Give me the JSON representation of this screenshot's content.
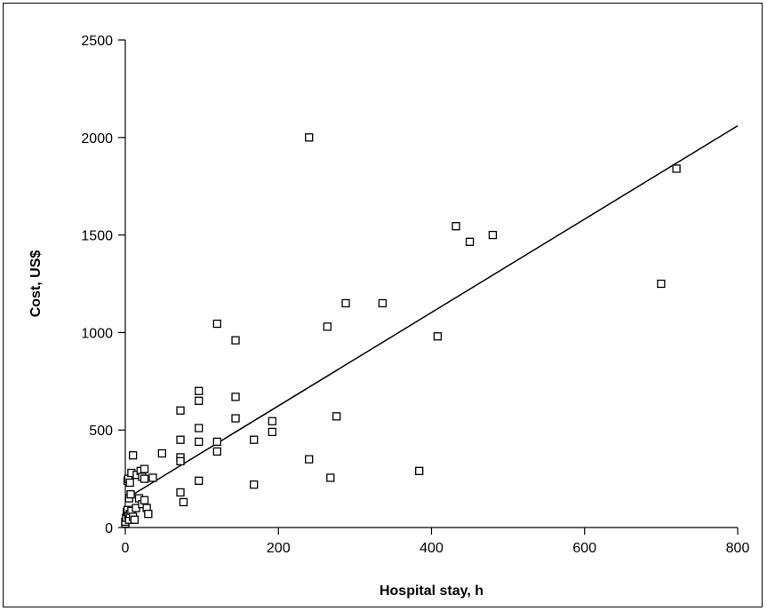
{
  "chart_data": {
    "type": "scatter",
    "title": "",
    "xlabel": "Hospital stay, h",
    "ylabel": "Cost, US$",
    "xlim": [
      0,
      800
    ],
    "ylim": [
      0,
      2500
    ],
    "xticks": [
      0,
      200,
      400,
      600,
      800
    ],
    "yticks": [
      0,
      500,
      1000,
      1500,
      2000,
      2500
    ],
    "xtick_labels": [
      "0",
      "200",
      "400",
      "600",
      "800"
    ],
    "ytick_labels": [
      "0",
      "500",
      "1000",
      "1500",
      "2000",
      "2500"
    ],
    "grid": false,
    "marker": "open-square",
    "marker_color": "#000000",
    "series": [
      {
        "points": [
          [
            0,
            20
          ],
          [
            0,
            30
          ],
          [
            1,
            50
          ],
          [
            2,
            80
          ],
          [
            3,
            90
          ],
          [
            4,
            60
          ],
          [
            5,
            40
          ],
          [
            6,
            70
          ],
          [
            8,
            85
          ],
          [
            10,
            55
          ],
          [
            12,
            40
          ],
          [
            14,
            100
          ],
          [
            3,
            240
          ],
          [
            4,
            250
          ],
          [
            6,
            230
          ],
          [
            8,
            280
          ],
          [
            5,
            150
          ],
          [
            7,
            170
          ],
          [
            10,
            370
          ],
          [
            15,
            270
          ],
          [
            20,
            290
          ],
          [
            22,
            260
          ],
          [
            25,
            250
          ],
          [
            25,
            300
          ],
          [
            18,
            150
          ],
          [
            22,
            120
          ],
          [
            25,
            140
          ],
          [
            28,
            100
          ],
          [
            30,
            70
          ],
          [
            36,
            255
          ],
          [
            48,
            380
          ],
          [
            72,
            600
          ],
          [
            72,
            450
          ],
          [
            72,
            360
          ],
          [
            72,
            340
          ],
          [
            72,
            180
          ],
          [
            76,
            130
          ],
          [
            96,
            700
          ],
          [
            96,
            650
          ],
          [
            96,
            510
          ],
          [
            96,
            440
          ],
          [
            96,
            240
          ],
          [
            120,
            1045
          ],
          [
            120,
            440
          ],
          [
            120,
            390
          ],
          [
            144,
            960
          ],
          [
            144,
            670
          ],
          [
            144,
            560
          ],
          [
            168,
            450
          ],
          [
            168,
            220
          ],
          [
            192,
            545
          ],
          [
            192,
            490
          ],
          [
            240,
            2000
          ],
          [
            240,
            350
          ],
          [
            264,
            1030
          ],
          [
            268,
            255
          ],
          [
            276,
            570
          ],
          [
            288,
            1150
          ],
          [
            336,
            1150
          ],
          [
            384,
            290
          ],
          [
            408,
            980
          ],
          [
            432,
            1545
          ],
          [
            450,
            1465
          ],
          [
            480,
            1500
          ],
          [
            700,
            1250
          ],
          [
            720,
            1840
          ]
        ]
      }
    ],
    "trendline": {
      "x": [
        0,
        800
      ],
      "y": [
        145,
        2060
      ]
    }
  }
}
